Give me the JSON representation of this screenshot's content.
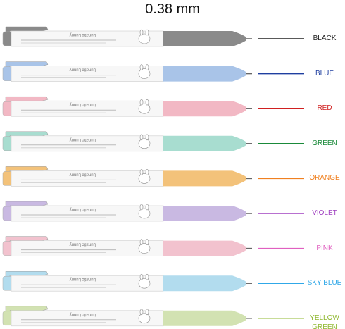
{
  "title": "0.38 mm",
  "brand": "Lunatic Lunny",
  "pens": [
    {
      "label": "BLACK",
      "barrel": "#8a8a8a",
      "ink": "#222222"
    },
    {
      "label": "BLUE",
      "barrel": "#a9c4e8",
      "ink": "#1f3fa0"
    },
    {
      "label": "RED",
      "barrel": "#f2b8c4",
      "ink": "#d02020"
    },
    {
      "label": "GREEN",
      "barrel": "#a8ddd0",
      "ink": "#1a8a3a"
    },
    {
      "label": "ORANGE",
      "barrel": "#f3c27a",
      "ink": "#f08020"
    },
    {
      "label": "VIOLET",
      "barrel": "#c9b9e2",
      "ink": "#a040c0"
    },
    {
      "label": "PINK",
      "barrel": "#f2c2ce",
      "ink": "#e060c0"
    },
    {
      "label": "SKY BLUE",
      "barrel": "#b2dcee",
      "ink": "#30a8e8"
    },
    {
      "label": "YELLOW GREEN",
      "barrel": "#d2e2b2",
      "ink": "#90b830"
    }
  ]
}
